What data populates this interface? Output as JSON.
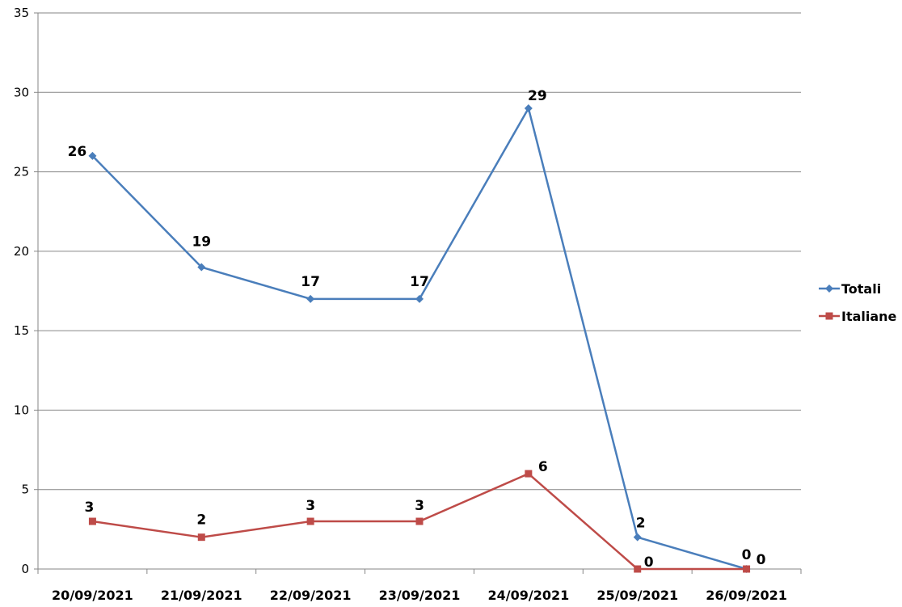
{
  "chart_data": {
    "type": "line",
    "categories": [
      "20/09/2021",
      "21/09/2021",
      "22/09/2021",
      "23/09/2021",
      "24/09/2021",
      "25/09/2021",
      "26/09/2021"
    ],
    "ylim": [
      0,
      35
    ],
    "yticks": [
      0,
      5,
      10,
      15,
      20,
      25,
      30,
      35
    ],
    "grid": true,
    "legend_position": "right",
    "series": [
      {
        "name": "Totali",
        "values": [
          26,
          19,
          17,
          17,
          29,
          2,
          0
        ],
        "color": "#4A7EBB",
        "marker": "diamond"
      },
      {
        "name": "Italiane",
        "values": [
          3,
          2,
          3,
          3,
          6,
          0,
          0
        ],
        "color": "#BE4B48",
        "marker": "square"
      }
    ]
  }
}
